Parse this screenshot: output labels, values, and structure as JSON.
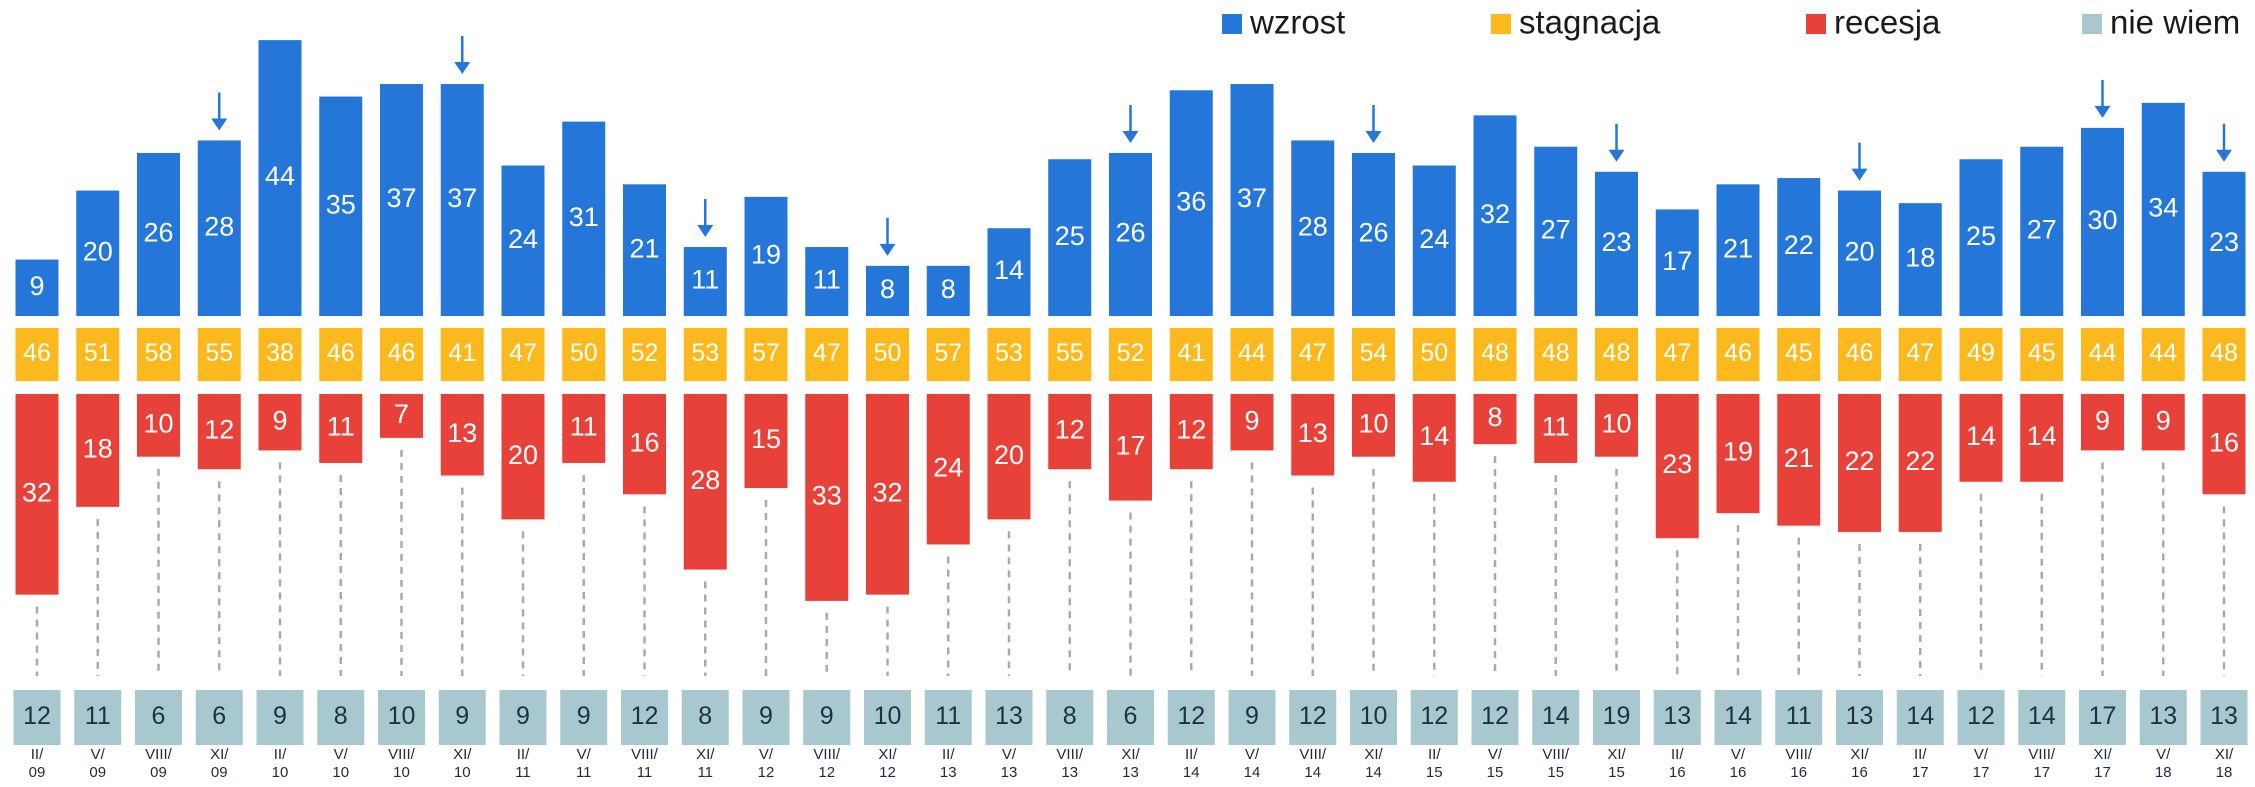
{
  "chart_data": {
    "type": "diverging-bar",
    "categories": [
      "II/\n09",
      "V/\n09",
      "VIII/\n09",
      "XI/\n09",
      "II/\n10",
      "V/\n10",
      "VIII/\n10",
      "XI/\n10",
      "II/\n11",
      "V/\n11",
      "VIII/\n11",
      "XI/\n11",
      "V/\n12",
      "VIII/\n12",
      "XI/\n12",
      "II/\n13",
      "V/\n13",
      "VIII/\n13",
      "XI/\n13",
      "II/\n14",
      "V/\n14",
      "VIII/\n14",
      "XI/\n14",
      "II/\n15",
      "V/\n15",
      "VIII/\n15",
      "XI/\n15",
      "II/\n16",
      "V/\n16",
      "VIII/\n16",
      "XI/\n16",
      "II/\n17",
      "V/\n17",
      "VIII/\n17",
      "XI/\n17",
      "V/\n18",
      "XI/\n18"
    ],
    "series": [
      {
        "name": "wzrost",
        "color": "#2477d9",
        "values": [
          9,
          20,
          26,
          28,
          44,
          35,
          37,
          37,
          24,
          31,
          21,
          11,
          19,
          11,
          8,
          8,
          14,
          25,
          26,
          36,
          37,
          28,
          26,
          24,
          32,
          27,
          23,
          17,
          21,
          22,
          20,
          18,
          25,
          27,
          30,
          34,
          23
        ]
      },
      {
        "name": "stagnacja",
        "color": "#fbb91d",
        "values": [
          46,
          51,
          58,
          55,
          38,
          46,
          46,
          41,
          47,
          50,
          52,
          53,
          57,
          47,
          50,
          57,
          53,
          55,
          52,
          41,
          44,
          47,
          54,
          50,
          48,
          48,
          48,
          47,
          46,
          45,
          46,
          47,
          49,
          45,
          44,
          44,
          48
        ]
      },
      {
        "name": "recesja",
        "color": "#e8413a",
        "values": [
          32,
          18,
          10,
          12,
          9,
          11,
          7,
          13,
          20,
          11,
          16,
          28,
          15,
          33,
          32,
          24,
          20,
          12,
          17,
          12,
          9,
          13,
          10,
          14,
          8,
          11,
          10,
          23,
          19,
          21,
          22,
          22,
          14,
          14,
          9,
          9,
          16
        ]
      },
      {
        "name": "nie wiem",
        "color": "#a7c8cf",
        "values": [
          12,
          11,
          6,
          6,
          9,
          8,
          10,
          9,
          9,
          9,
          12,
          8,
          9,
          9,
          10,
          11,
          13,
          8,
          6,
          12,
          9,
          12,
          10,
          12,
          12,
          14,
          19,
          13,
          14,
          11,
          13,
          14,
          12,
          14,
          17,
          13,
          13
        ]
      }
    ],
    "marked": [
      3,
      7,
      11,
      14,
      18,
      22,
      26,
      30,
      34,
      36
    ],
    "legend": "top-right"
  }
}
